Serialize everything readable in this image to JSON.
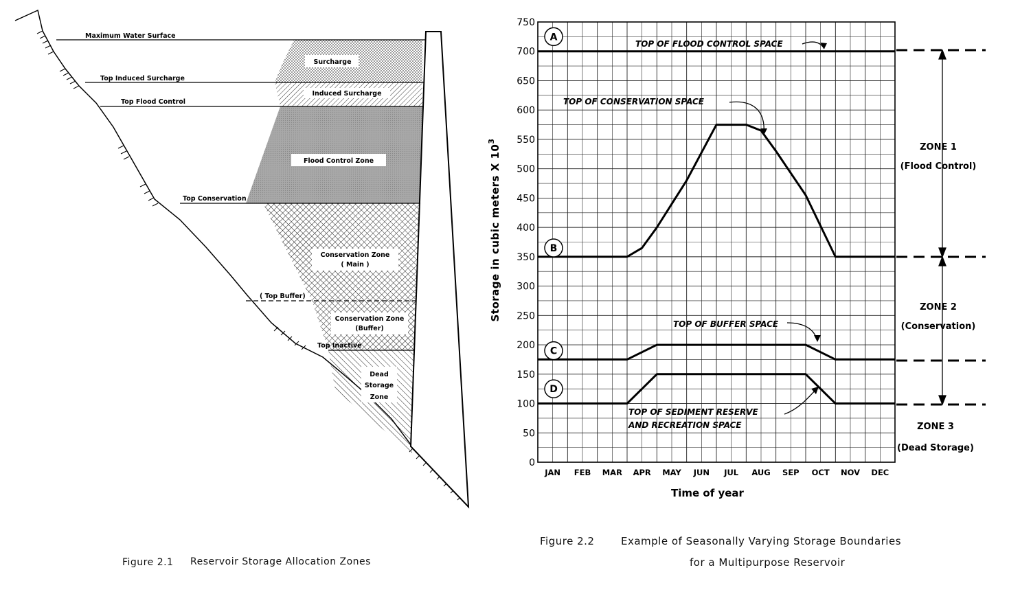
{
  "figure1": {
    "caption_num": "Figure 2.1",
    "caption_text": "Reservoir Storage Allocation Zones",
    "labels": {
      "max_water_surface": "Maximum Water Surface",
      "top_induced_surcharge": "Top Induced Surcharge",
      "top_flood_control": "Top Flood Control",
      "top_conservation": "Top Conservation",
      "top_buffer": "( Top Buffer)",
      "top_inactive": "Top Inactive"
    },
    "zones": {
      "surcharge": "Surcharge",
      "induced_surcharge": "Induced Surcharge",
      "flood_control": "Flood Control Zone",
      "conservation_main_1": "Conservation Zone",
      "conservation_main_2": "( Main )",
      "conservation_buffer_1": "Conservation Zone",
      "conservation_buffer_2": "(Buffer)",
      "dead_1": "Dead",
      "dead_2": "Storage",
      "dead_3": "Zone"
    }
  },
  "figure2": {
    "caption_num": "Figure 2.2",
    "caption_line1": "Example of Seasonally Varying Storage Boundaries",
    "caption_line2": "for a Multipurpose Reservoir",
    "ylabel": "Storage in cubic meters  X 10",
    "ylabel_exp": "3",
    "xlabel": "Time  of  year",
    "annotations": {
      "a": "TOP OF FLOOD CONTROL SPACE",
      "b": "TOP OF CONSERVATION SPACE",
      "c": "TOP OF BUFFER SPACE",
      "d1": "TOP OF SEDIMENT RESERVE",
      "d2": "AND RECREATION SPACE"
    },
    "circle_labels": [
      "A",
      "B",
      "C",
      "D"
    ],
    "zones": {
      "z1_title": "ZONE 1",
      "z1_sub": "(Flood Control)",
      "z2_title": "ZONE 2",
      "z2_sub": "(Conservation)",
      "z3_title": "ZONE 3",
      "z3_sub": "(Dead Storage)"
    }
  },
  "chart_data": {
    "type": "line",
    "title": "",
    "xlabel": "Time  of  year",
    "ylabel": "Storage in cubic meters X 10^3",
    "categories": [
      "JAN",
      "FEB",
      "MAR",
      "APR",
      "MAY",
      "JUN",
      "JUL",
      "AUG",
      "SEP",
      "OCT",
      "NOV",
      "DEC"
    ],
    "yticks": [
      0,
      50,
      100,
      150,
      200,
      250,
      300,
      350,
      400,
      450,
      500,
      550,
      600,
      650,
      700,
      750
    ],
    "ylim": [
      0,
      750
    ],
    "xlim": [
      0,
      12
    ],
    "grid": true,
    "series": [
      {
        "name": "A",
        "x": [
          0,
          12
        ],
        "y": [
          700,
          700
        ]
      },
      {
        "name": "B",
        "x": [
          0,
          3,
          3.5,
          4,
          4.5,
          5,
          6,
          7,
          7.5,
          8,
          9,
          10,
          12
        ],
        "y": [
          350,
          350,
          365,
          400,
          440,
          480,
          575,
          575,
          565,
          530,
          455,
          350,
          350
        ]
      },
      {
        "name": "C",
        "x": [
          0,
          3,
          4,
          9,
          10,
          12
        ],
        "y": [
          175,
          175,
          200,
          200,
          175,
          175
        ]
      },
      {
        "name": "D",
        "x": [
          0,
          3,
          4,
          9,
          10,
          12
        ],
        "y": [
          100,
          100,
          150,
          150,
          100,
          100
        ]
      }
    ]
  }
}
